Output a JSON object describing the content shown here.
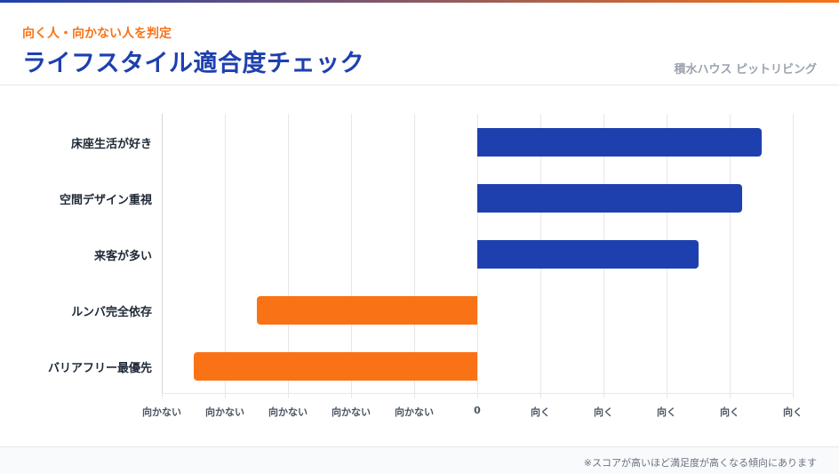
{
  "header": {
    "subtitle": "向く人・向かない人を判定",
    "title": "ライフスタイル適合度チェック",
    "brand": "積水ハウス ピットリビング"
  },
  "colors": {
    "positive": "#1e40af",
    "negative": "#f97316",
    "gradient_start": "#1e40af",
    "gradient_end": "#f97316"
  },
  "footer": {
    "note": "※スコアが高いほど満足度が高くなる傾向にあります"
  },
  "chart_data": {
    "type": "bar",
    "orientation": "horizontal",
    "title": "ライフスタイル適合度チェック",
    "xlabel": "",
    "ylabel": "",
    "xlim": [
      -5,
      5
    ],
    "grid": true,
    "categories": [
      "床座生活が好き",
      "空間デザイン重視",
      "来客が多い",
      "ルンバ完全依存",
      "バリアフリー最優先"
    ],
    "values": [
      4.5,
      4.2,
      3.5,
      -3.5,
      -4.5
    ],
    "bar_colors": [
      "#1e40af",
      "#1e40af",
      "#1e40af",
      "#f97316",
      "#f97316"
    ],
    "x_ticks": [
      -5,
      -4,
      -3,
      -2,
      -1,
      0,
      1,
      2,
      3,
      4,
      5
    ],
    "x_tick_labels": [
      "向かない",
      "向かない",
      "向かない",
      "向かない",
      "向かない",
      "0",
      "向く",
      "向く",
      "向く",
      "向く",
      "向く"
    ],
    "legend": null
  }
}
